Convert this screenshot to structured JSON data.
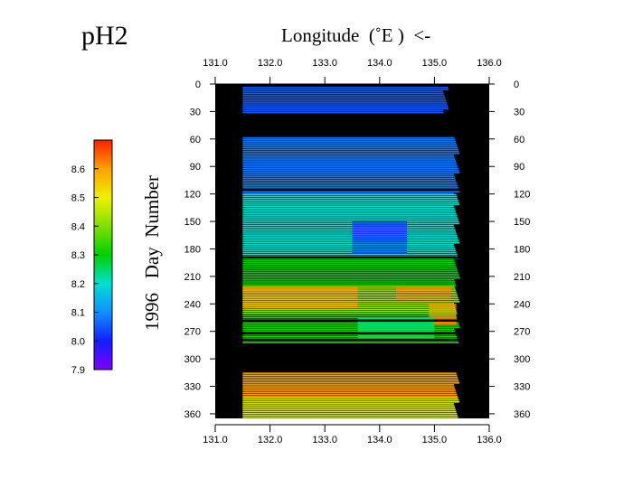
{
  "chart_data": {
    "type": "heatmap",
    "title": "pH2",
    "xlabel": "Longitude  (˚E )  <-",
    "ylabel": "1996   Day  Number",
    "x_ticks": [
      "131.0",
      "132.0",
      "133.0",
      "134.0",
      "135.0",
      "136.0"
    ],
    "xlim": [
      131.0,
      136.0
    ],
    "y_ticks": [
      "0",
      "30",
      "60",
      "90",
      "120",
      "150",
      "180",
      "210",
      "240",
      "270",
      "300",
      "330",
      "360"
    ],
    "ylim": [
      0,
      365
    ],
    "background": "#000000",
    "colorbar": {
      "ticks": [
        "8.6",
        "8.5",
        "8.4",
        "8.3",
        "8.2",
        "8.1",
        "8.0",
        "7.9"
      ],
      "range": [
        7.9,
        8.7
      ],
      "colors": [
        "#ff2000",
        "#ffa000",
        "#f0f000",
        "#80e000",
        "#00d000",
        "#00e0d0",
        "#1090ff",
        "#1020ff",
        "#8000ff"
      ]
    },
    "segments": [
      {
        "day_start": 3,
        "day_end": 32,
        "lon_start": 131.5,
        "lon_end": 135.2,
        "ph": 8.05
      },
      {
        "day_start": 58,
        "day_end": 120,
        "lon_start": 131.5,
        "lon_end": 135.4,
        "ph": 8.08
      },
      {
        "day_start": 120,
        "day_end": 190,
        "lon_start": 131.5,
        "lon_end": 135.4,
        "ph": 8.2
      },
      {
        "day_start": 190,
        "day_end": 220,
        "lon_start": 131.5,
        "lon_end": 135.4,
        "ph": 8.3
      },
      {
        "day_start": 220,
        "day_end": 250,
        "lon_start": 131.5,
        "lon_end": 135.4,
        "ph": 8.42
      },
      {
        "day_start": 250,
        "day_end": 283,
        "lon_start": 131.5,
        "lon_end": 135.4,
        "ph": 8.32
      },
      {
        "day_start": 315,
        "day_end": 342,
        "lon_start": 131.5,
        "lon_end": 135.4,
        "ph": 8.6
      },
      {
        "day_start": 342,
        "day_end": 365,
        "lon_start": 131.5,
        "lon_end": 135.4,
        "ph": 8.48
      }
    ],
    "patches": [
      {
        "day_start": 150,
        "day_end": 185,
        "lon_start": 133.5,
        "lon_end": 134.5,
        "ph": 8.02
      },
      {
        "day_start": 222,
        "day_end": 245,
        "lon_start": 131.5,
        "lon_end": 133.6,
        "ph": 8.58
      },
      {
        "day_start": 222,
        "day_end": 235,
        "lon_start": 134.3,
        "lon_end": 135.3,
        "ph": 8.6
      },
      {
        "day_start": 240,
        "day_end": 262,
        "lon_start": 134.9,
        "lon_end": 135.4,
        "ph": 8.62
      },
      {
        "day_start": 255,
        "day_end": 280,
        "lon_start": 133.6,
        "lon_end": 135.0,
        "ph": 8.25
      }
    ],
    "gaps_days": [
      114,
      188,
      257,
      271,
      278
    ]
  }
}
